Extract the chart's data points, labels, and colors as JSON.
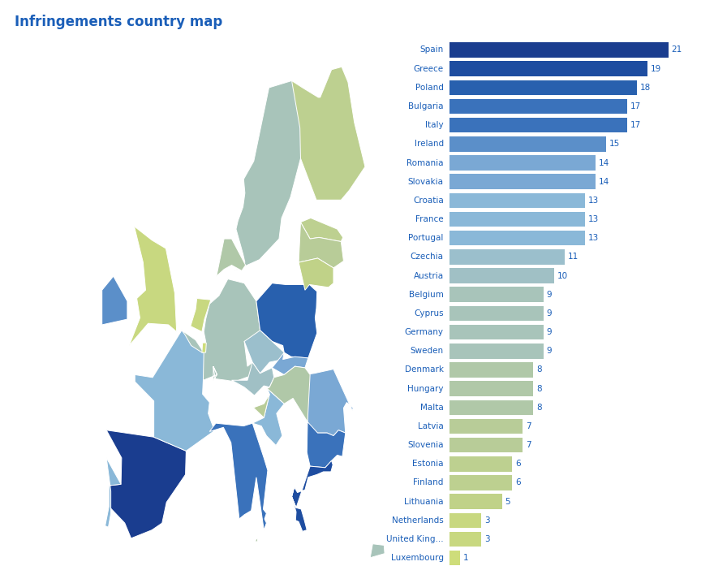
{
  "title": "Infringements country map",
  "title_color": "#1a5eb8",
  "title_fontsize": 12,
  "background_color": "#ffffff",
  "countries": [
    "Spain",
    "Greece",
    "Poland",
    "Bulgaria",
    "Italy",
    "Ireland",
    "Romania",
    "Slovakia",
    "Croatia",
    "France",
    "Portugal",
    "Czechia",
    "Austria",
    "Belgium",
    "Cyprus",
    "Germany",
    "Sweden",
    "Denmark",
    "Hungary",
    "Malta",
    "Latvia",
    "Slovenia",
    "Estonia",
    "Finland",
    "Lithuania",
    "Netherlands",
    "United King...",
    "Luxembourg"
  ],
  "values": [
    21,
    19,
    18,
    17,
    17,
    15,
    14,
    14,
    13,
    13,
    13,
    11,
    10,
    9,
    9,
    9,
    9,
    8,
    8,
    8,
    7,
    7,
    6,
    6,
    5,
    3,
    3,
    1
  ],
  "label_color": "#1a5eb8",
  "value_color": "#1a5eb8",
  "bar_height": 0.8,
  "xlim_max": 24,
  "map_xlim": [
    -25,
    45
  ],
  "map_ylim": [
    34,
    72
  ],
  "color_gradient": [
    [
      21,
      "#1a3d8f"
    ],
    [
      19,
      "#1e4da0"
    ],
    [
      18,
      "#2860ae"
    ],
    [
      17,
      "#3a72bb"
    ],
    [
      15,
      "#5b8fc9"
    ],
    [
      14,
      "#7aa8d4"
    ],
    [
      13,
      "#8ab8d8"
    ],
    [
      11,
      "#9bbfcc"
    ],
    [
      10,
      "#a0c0c5"
    ],
    [
      9,
      "#a8c4ba"
    ],
    [
      8,
      "#b0c8a8"
    ],
    [
      7,
      "#b8cc98"
    ],
    [
      6,
      "#bdd090"
    ],
    [
      5,
      "#c0d288"
    ],
    [
      3,
      "#c8d880"
    ],
    [
      1,
      "#cedd7a"
    ]
  ],
  "non_eu_color": "#e8e8e8",
  "name_map": {
    "United Kingdom": "United King...",
    "Czech Republic": "Czechia",
    "Czechia": "Czechia",
    "Bosnia and Herz.": null,
    "North Macedonia": null,
    "Serbia": null,
    "Montenegro": null,
    "Albania": null,
    "Kosovo": null,
    "Moldova": null,
    "Belarus": null,
    "Ukraine": null,
    "Russia": null,
    "Norway": null,
    "Iceland": null,
    "Switzerland": null,
    "Liechtenstein": null,
    "Andorra": null,
    "Monaco": null,
    "San Marino": null,
    "Vatican": null,
    "Turkey": null
  }
}
